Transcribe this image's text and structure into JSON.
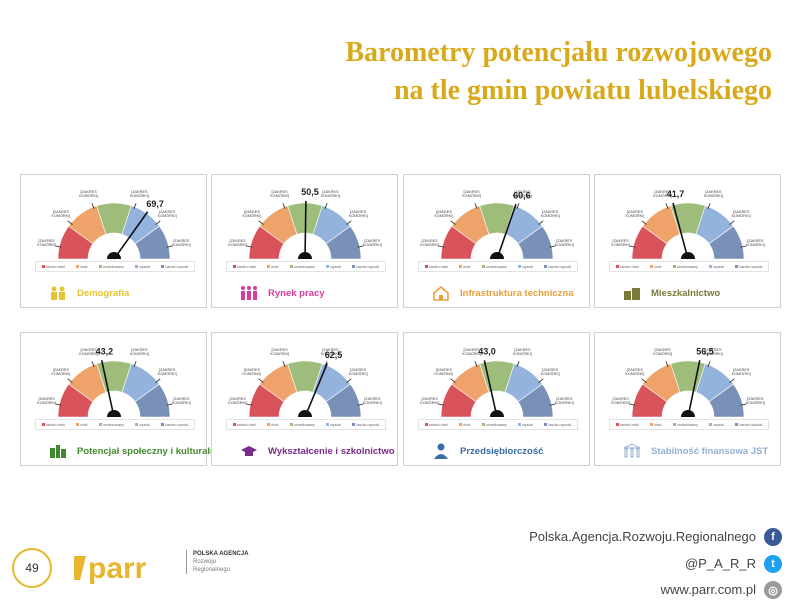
{
  "header": {
    "title_line1": "Barometry potencjału rozwojowego",
    "title_line2": "na tle gmin powiatu lubelskiego"
  },
  "scale_label": "[ZAKRES KOMÓRKI]",
  "zone_colors": [
    "#d9545a",
    "#eea36a",
    "#9fbd7a",
    "#94b3dc",
    "#7991b8"
  ],
  "legend": [
    "bardzo niski",
    "niski",
    "umiarkowany",
    "wysoki",
    "bardzo wysoki"
  ],
  "cards": [
    {
      "label": "Demografia",
      "value": "69,7",
      "needle": 69.7,
      "color": "#e4c433",
      "icon": "people-group-icon"
    },
    {
      "label": "Rynek pracy",
      "value": "50,5",
      "needle": 50.5,
      "color": "#d63d9a",
      "icon": "workers-icon"
    },
    {
      "label": "Infrastruktura techniczna",
      "value": "60,6",
      "needle": 60.6,
      "color": "#e8a03a",
      "icon": "house-infrastructure-icon"
    },
    {
      "label": "Mieszkalnictwo",
      "value": "41,7",
      "needle": 41.7,
      "color": "#7a7a3a",
      "icon": "housing-icon"
    },
    {
      "label": "Potencjał społeczny i kulturalny",
      "value": "43,2",
      "needle": 43.2,
      "color": "#3f8a2e",
      "icon": "culture-buildings-icon"
    },
    {
      "label": "Wykształcenie i szkolnictwo",
      "value": "62,5",
      "needle": 62.5,
      "color": "#7a2a8a",
      "icon": "graduation-cap-icon"
    },
    {
      "label": "Przedsiębiorczość",
      "value": "43,0",
      "needle": 43.0,
      "color": "#3a6ca8",
      "icon": "businessman-icon"
    },
    {
      "label": "Stabilność finansowa JST",
      "value": "56,5",
      "needle": 56.5,
      "color": "#93aed6",
      "icon": "finance-building-icon"
    }
  ],
  "footer": {
    "page_number": "49",
    "logo_text": "parr",
    "org_line1": "POLSKA AGENCJA",
    "org_line2": "Rozwoju",
    "org_line3": "Regionalnego",
    "facebook": "Polska.Agencja.Rozwoju.Regionalnego",
    "twitter": "@P_A_R_R",
    "website": "www.parr.com.pl"
  }
}
